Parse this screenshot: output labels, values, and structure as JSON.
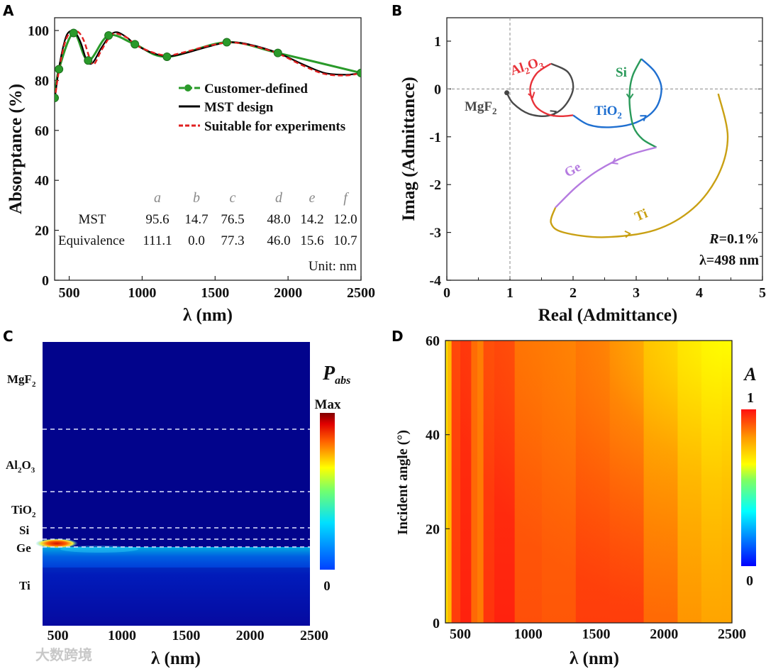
{
  "panels": {
    "a": "A",
    "b": "B",
    "c": "C",
    "d": "D"
  },
  "chart_data": [
    {
      "id": "A",
      "type": "line",
      "xlabel": "λ (nm)",
      "ylabel": "Absorptance (%)",
      "xlim": [
        400,
        2500
      ],
      "ylim": [
        0,
        105
      ],
      "xticks": [
        "500",
        "1000",
        "1500",
        "2000",
        "2500"
      ],
      "xtick_values": [
        500,
        1000,
        1500,
        2000,
        2500
      ],
      "yticks": [
        "0",
        "20",
        "40",
        "60",
        "80",
        "100"
      ],
      "ytick_values": [
        0,
        20,
        40,
        60,
        80,
        100
      ],
      "legend": [
        "Customer-defined",
        "MST design",
        "Suitable for experiments"
      ],
      "legend_position": "center-right",
      "series": [
        {
          "name": "Customer-defined",
          "color": "#2a9a2a",
          "x": [
            400,
            430,
            530,
            630,
            770,
            950,
            1170,
            1580,
            1930,
            2500
          ],
          "y": [
            73,
            84.5,
            99,
            88,
            98,
            94.5,
            89.5,
            95.3,
            91,
            83
          ]
        },
        {
          "name": "MST design",
          "color": "#000000",
          "x": [
            400,
            430,
            470,
            500,
            540,
            580,
            620,
            660,
            720,
            780,
            830,
            900,
            950,
            1050,
            1170,
            1300,
            1450,
            1600,
            1750,
            1930,
            2100,
            2250,
            2400,
            2500
          ],
          "y": [
            72,
            85,
            96,
            99.5,
            99.3,
            95,
            88,
            87,
            93,
            98,
            99.3,
            97,
            94.5,
            91.5,
            89.7,
            91,
            93.5,
            95.3,
            94.2,
            91,
            86.5,
            83,
            82.3,
            83
          ]
        },
        {
          "name": "Suitable for experiments",
          "color": "#e02020",
          "x": [
            400,
            430,
            470,
            510,
            560,
            600,
            640,
            670,
            720,
            780,
            820,
            900,
            950,
            1050,
            1170,
            1300,
            1450,
            1600,
            1750,
            1930,
            2100,
            2250,
            2400,
            2500
          ],
          "y": [
            72,
            84,
            95,
            99.4,
            99.5,
            96,
            89,
            86.5,
            92,
            97.5,
            98.8,
            97,
            94.5,
            91.7,
            90,
            91.5,
            93.8,
            95.2,
            94,
            90.8,
            86,
            82.6,
            82,
            83
          ]
        }
      ],
      "table": {
        "columns": [
          "a",
          "b",
          "c",
          "d",
          "e",
          "f"
        ],
        "rows": [
          {
            "label": "MST",
            "values": [
              "95.6",
              "14.7",
              "76.5",
              "48.0",
              "14.2",
              "12.0"
            ]
          },
          {
            "label": "Equivalence",
            "values": [
              "111.1",
              "0.0",
              "77.3",
              "46.0",
              "15.6",
              "10.7"
            ]
          }
        ],
        "unit": "Unit: nm"
      }
    },
    {
      "id": "B",
      "type": "line",
      "xlabel": "Real (Admittance)",
      "ylabel": "Imag (Admittance)",
      "xlim": [
        0,
        5
      ],
      "ylim": [
        -4,
        1.5
      ],
      "xticks": [
        "0",
        "1",
        "2",
        "3",
        "4",
        "5"
      ],
      "xtick_values": [
        0,
        1,
        2,
        3,
        4,
        5
      ],
      "yticks": [
        "-4",
        "-3",
        "-2",
        "-1",
        "0",
        "1"
      ],
      "ytick_values": [
        -4,
        -3,
        -2,
        -1,
        0,
        1
      ],
      "annotation_r": "R",
      "annotation_r_value": "=0.1%",
      "annotation_lambda": "λ=498 nm",
      "series": [
        {
          "name": "MgF",
          "sub": "2",
          "color": "#4a4a4a",
          "x": [
            0.95,
            1.05,
            1.3,
            1.6,
            1.85,
            2.0,
            1.92,
            1.65
          ],
          "y": [
            -0.08,
            -0.3,
            -0.52,
            -0.56,
            -0.38,
            0,
            0.35,
            0.53
          ]
        },
        {
          "name": "Al",
          "sub": "2",
          "name2": "O",
          "sub2": "3",
          "color": "#e8333a",
          "x": [
            1.65,
            1.42,
            1.32,
            1.4,
            1.6,
            1.8,
            2.0
          ],
          "y": [
            0.53,
            0.32,
            0,
            -0.35,
            -0.53,
            -0.57,
            -0.55
          ]
        },
        {
          "name": "TiO",
          "sub": "2",
          "color": "#1f6fd0",
          "x": [
            2.0,
            2.25,
            2.6,
            3.0,
            3.3,
            3.4,
            3.3,
            3.08
          ],
          "y": [
            -0.55,
            -0.75,
            -0.8,
            -0.7,
            -0.42,
            0,
            0.35,
            0.63
          ]
        },
        {
          "name": "Si",
          "color": "#2a9a5a",
          "x": [
            3.08,
            2.95,
            2.9,
            2.9,
            2.96,
            3.1,
            3.32
          ],
          "y": [
            0.63,
            0.3,
            0,
            -0.4,
            -0.8,
            -1.05,
            -1.22
          ]
        },
        {
          "name": "Ge",
          "color": "#b57be0",
          "x": [
            3.32,
            2.85,
            2.4,
            2.05,
            1.72
          ],
          "y": [
            -1.22,
            -1.4,
            -1.7,
            -2.05,
            -2.48
          ]
        },
        {
          "name": "Ti",
          "color": "#c9a013",
          "x": [
            1.72,
            1.65,
            1.85,
            2.5,
            3.3,
            3.9,
            4.3,
            4.45,
            4.3
          ],
          "y": [
            -2.48,
            -2.8,
            -3.0,
            -3.1,
            -2.95,
            -2.5,
            -1.8,
            -1.0,
            -0.1
          ]
        }
      ]
    },
    {
      "id": "C",
      "type": "heatmap",
      "xlabel": "λ (nm)",
      "xlim": [
        380,
        2500
      ],
      "xticks": [
        "500",
        "1000",
        "1500",
        "2000",
        "2500"
      ],
      "xtick_values": [
        500,
        1000,
        1500,
        2000,
        2500
      ],
      "layers": [
        {
          "name": "MgF",
          "sub": "2"
        },
        {
          "name": "Al",
          "sub": "2",
          "name2": "O",
          "sub2": "3"
        },
        {
          "name": "TiO",
          "sub": "2"
        },
        {
          "name": "Si"
        },
        {
          "name": "Ge"
        },
        {
          "name": "Ti"
        }
      ],
      "colorbar_title": "P",
      "colorbar_title_sub": "abs",
      "colorbar_max": "Max",
      "colorbar_min": "0"
    },
    {
      "id": "D",
      "type": "heatmap",
      "xlabel": "λ (nm)",
      "ylabel": "Incident angle (°)",
      "xlim": [
        390,
        2500
      ],
      "ylim": [
        0,
        60
      ],
      "xticks": [
        "500",
        "1000",
        "1500",
        "2000",
        "2500"
      ],
      "xtick_values": [
        500,
        1000,
        1500,
        2000,
        2500
      ],
      "yticks": [
        "0",
        "20",
        "40",
        "60"
      ],
      "ytick_values": [
        0,
        20,
        40,
        60
      ],
      "colorbar_title": "A",
      "colorbar_max": "1",
      "colorbar_min": "0",
      "wavelength": [
        390,
        420,
        450,
        550,
        610,
        640,
        700,
        800,
        1000,
        1200,
        1500,
        1700,
        2000,
        2200,
        2350,
        2500
      ],
      "A_at_0deg": [
        0.74,
        0.8,
        0.95,
        0.98,
        0.9,
        0.88,
        0.96,
        0.98,
        0.93,
        0.92,
        0.95,
        0.95,
        0.9,
        0.85,
        0.83,
        0.83
      ],
      "A_at_60deg": [
        0.74,
        0.8,
        0.94,
        0.96,
        0.9,
        0.88,
        0.94,
        0.95,
        0.9,
        0.9,
        0.92,
        0.9,
        0.83,
        0.76,
        0.71,
        0.73
      ]
    }
  ],
  "watermark": "大数跨境"
}
